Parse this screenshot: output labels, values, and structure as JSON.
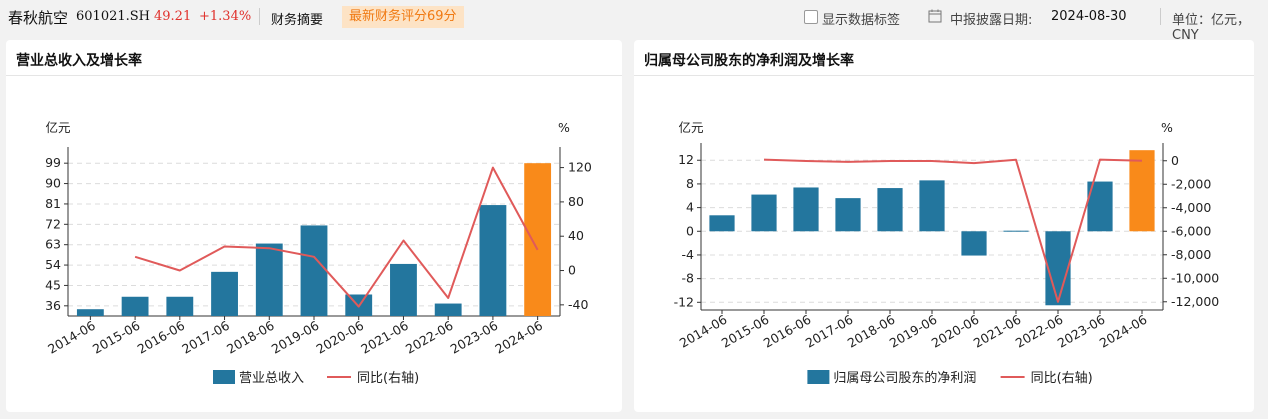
{
  "header": {
    "stock_name": "春秋航空",
    "stock_code": "601021.SH",
    "price": "49.21",
    "change_pct": "+1.34%",
    "section": "财务摘要",
    "score_badge": "最新财务评分69分",
    "show_labels": "显示数据标签",
    "date_label": "中报披露日期:",
    "date_value": "2024-08-30",
    "unit": "单位：亿元，CNY"
  },
  "colors": {
    "bar": "#23769e",
    "bar_highlight": "#f98a1a",
    "line": "#e05a5a",
    "up": "#e0302b",
    "badge_text": "#f07a13"
  },
  "chart_data": [
    {
      "type": "bar",
      "title": "营业总收入及增长率",
      "categories": [
        "2014-06",
        "2015-06",
        "2016-06",
        "2017-06",
        "2018-06",
        "2019-06",
        "2020-06",
        "2021-06",
        "2022-06",
        "2023-06",
        "2024-06"
      ],
      "series": [
        {
          "name": "营业总收入",
          "axis": "left",
          "values": [
            34.5,
            40.0,
            40.0,
            51.0,
            63.5,
            71.5,
            41.0,
            54.5,
            37.0,
            80.5,
            99.0
          ]
        },
        {
          "name": "同比(右轴)",
          "axis": "right",
          "type": "line",
          "values": [
            null,
            16,
            0,
            28,
            26,
            16,
            -42,
            35,
            -32,
            120,
            24
          ]
        }
      ],
      "ylabel_left": "亿元",
      "ylabel_right": "%",
      "yticks_left": [
        36,
        45,
        54,
        63,
        72,
        81,
        90,
        99
      ],
      "ylim_left": [
        31.5,
        103.5
      ],
      "yticks_right": [
        -40,
        0,
        40,
        80,
        120
      ],
      "ylim_right": [
        -53,
        137
      ],
      "highlight_last": true,
      "legend": "bottom-center",
      "grid": true
    },
    {
      "type": "bar",
      "title": "归属母公司股东的净利润及增长率",
      "categories": [
        "2014-06",
        "2015-06",
        "2016-06",
        "2017-06",
        "2018-06",
        "2019-06",
        "2020-06",
        "2021-06",
        "2022-06",
        "2023-06",
        "2024-06"
      ],
      "series": [
        {
          "name": "归属母公司股东的净利润",
          "axis": "left",
          "values": [
            2.7,
            6.2,
            7.4,
            5.6,
            7.3,
            8.6,
            -4.1,
            0.1,
            -12.5,
            8.4,
            13.7
          ]
        },
        {
          "name": "同比(右轴)",
          "axis": "right",
          "type": "line",
          "values": [
            null,
            100,
            -20,
            -100,
            -20,
            -20,
            -200,
            80,
            -12000,
            100,
            0
          ]
        }
      ],
      "ylabel_left": "亿元",
      "ylabel_right": "%",
      "yticks_left": [
        -12,
        -8,
        -4,
        0,
        4,
        8,
        12
      ],
      "ylim_left": [
        -13.3,
        13.9
      ],
      "yticks_right": [
        "0",
        "-2,000",
        "-4,000",
        "-6,000",
        "-8,000",
        "-10,000",
        "-12,000"
      ],
      "yticks_right_values": [
        0,
        -2000,
        -4000,
        -6000,
        -8000,
        -10000,
        -12000
      ],
      "ylim_right": [
        -12700,
        1000
      ],
      "highlight_last": true,
      "legend": "bottom-center",
      "grid": true
    }
  ]
}
